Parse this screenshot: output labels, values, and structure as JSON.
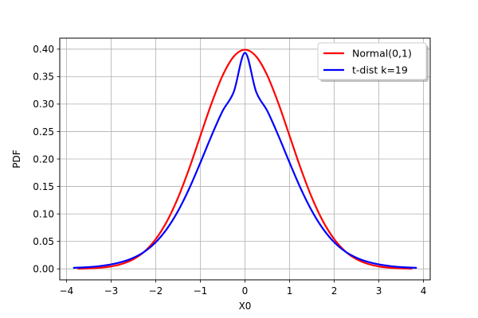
{
  "chart_data": {
    "type": "line",
    "xlabel": "X0",
    "ylabel": "PDF",
    "xlim": [
      -4.15,
      4.15
    ],
    "ylim": [
      -0.02,
      0.42
    ],
    "xticks": [
      -4,
      -3,
      -2,
      -1,
      0,
      1,
      2,
      3,
      4
    ],
    "yticks": [
      0.0,
      0.05,
      0.1,
      0.15,
      0.2,
      0.25,
      0.3,
      0.35,
      0.4
    ],
    "ytick_labels": [
      "0.00",
      "0.05",
      "0.10",
      "0.15",
      "0.20",
      "0.25",
      "0.30",
      "0.35",
      "0.40"
    ],
    "grid": true,
    "legend_position": "top-right",
    "series": [
      {
        "name": "Normal(0,1)",
        "color": "#ff0000",
        "x": [
          -3.75,
          -3.5,
          -3.25,
          -3.0,
          -2.75,
          -2.5,
          -2.25,
          -2.0,
          -1.75,
          -1.5,
          -1.25,
          -1.0,
          -0.75,
          -0.5,
          -0.25,
          0.0,
          0.25,
          0.5,
          0.75,
          1.0,
          1.25,
          1.5,
          1.75,
          2.0,
          2.25,
          2.5,
          2.75,
          3.0,
          3.25,
          3.5,
          3.75
        ],
        "y": [
          0.0004,
          0.0009,
          0.002,
          0.0044,
          0.0091,
          0.0175,
          0.0317,
          0.054,
          0.0863,
          0.1295,
          0.1826,
          0.242,
          0.3011,
          0.3521,
          0.3867,
          0.3989,
          0.3867,
          0.3521,
          0.3011,
          0.242,
          0.1826,
          0.1295,
          0.0863,
          0.054,
          0.0317,
          0.0175,
          0.0091,
          0.0044,
          0.002,
          0.0009,
          0.0004
        ]
      },
      {
        "name": "t-dist k=19",
        "color": "#0000ff",
        "x": [
          -3.85,
          -3.5,
          -3.25,
          -3.0,
          -2.75,
          -2.5,
          -2.25,
          -2.0,
          -1.75,
          -1.5,
          -1.25,
          -1.0,
          -0.75,
          -0.5,
          -0.25,
          0.0,
          0.25,
          0.5,
          0.75,
          1.0,
          1.25,
          1.5,
          1.75,
          2.0,
          2.25,
          2.5,
          2.75,
          3.0,
          3.25,
          3.5,
          3.85
        ],
        "y": [
          0.0018,
          0.0032,
          0.0051,
          0.0081,
          0.0128,
          0.0202,
          0.0314,
          0.0484,
          0.0727,
          0.1053,
          0.1461,
          0.1932,
          0.2422,
          0.2875,
          0.3225,
          0.3934,
          0.3225,
          0.2875,
          0.2422,
          0.1932,
          0.1461,
          0.1053,
          0.0727,
          0.0484,
          0.0314,
          0.0202,
          0.0128,
          0.0081,
          0.0051,
          0.0032,
          0.0018
        ]
      }
    ]
  }
}
